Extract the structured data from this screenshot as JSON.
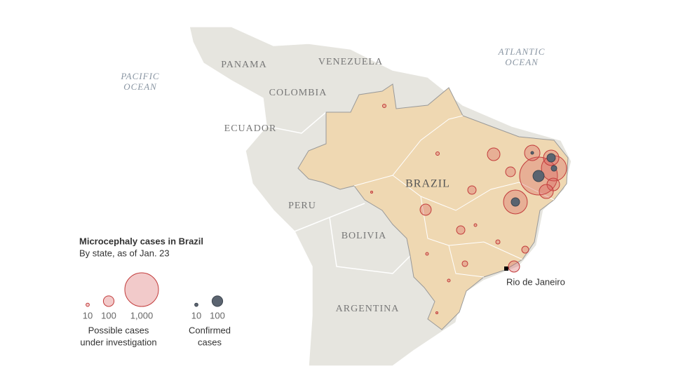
{
  "map_labels": {
    "pacific_ocean": [
      "PACIFIC",
      "OCEAN"
    ],
    "atlantic_ocean": [
      "ATLANTIC",
      "OCEAN"
    ],
    "panama": "PANAMA",
    "venezuela": "VENEZUELA",
    "colombia": "COLOMBIA",
    "ecuador": "ECUADOR",
    "peru": "PERU",
    "bolivia": "BOLIVIA",
    "argentina": "ARGENTINA",
    "brazil": "BRAZIL",
    "rio": "Rio de Janeiro"
  },
  "legend": {
    "title": "Microcephaly cases in Brazil",
    "subtitle": "By state, as of Jan. 23",
    "possible_sizes": [
      10,
      100,
      {
        "value": 1000,
        "label": "1,000"
      }
    ],
    "possible_caption": [
      "Possible cases",
      "under investigation"
    ],
    "confirmed_sizes": [
      10,
      100
    ],
    "confirmed_caption": [
      "Confirmed",
      "cases"
    ]
  },
  "possible_cases": [
    1265,
    560,
    210,
    210,
    85,
    140,
    140,
    175,
    500,
    62,
    110,
    62,
    7,
    16,
    43,
    110,
    28,
    7,
    7,
    4,
    11,
    11,
    4
  ],
  "confirmed_cases": [
    110,
    28,
    62,
    7,
    null,
    null,
    null,
    null,
    62,
    null,
    null,
    null,
    null,
    null,
    null,
    null,
    null,
    null,
    null,
    null,
    null,
    null,
    null
  ]
}
